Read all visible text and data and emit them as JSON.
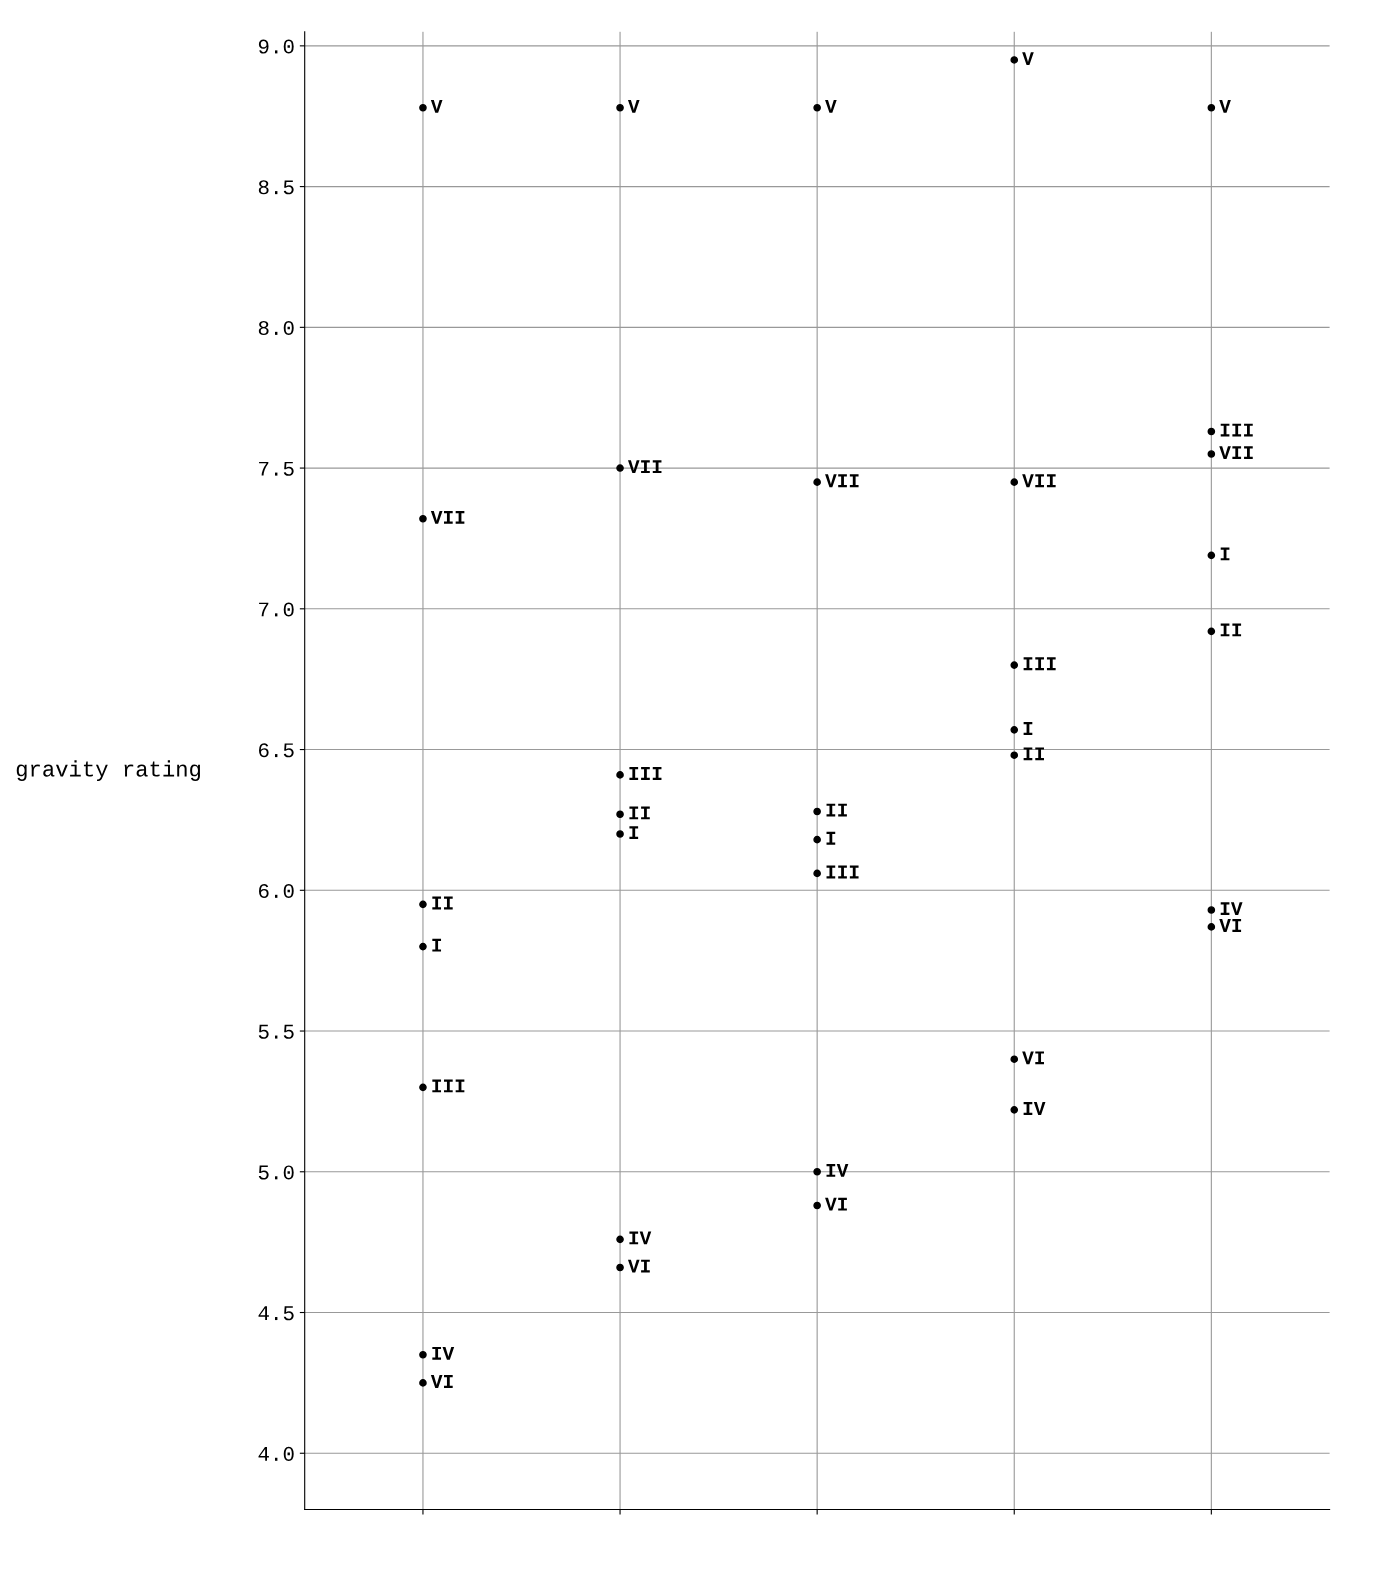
{
  "chart_data": {
    "type": "scatter",
    "ylabel": "gravity rating",
    "categories": [
      null,
      null,
      null,
      null,
      null
    ],
    "series": [
      {
        "name": "I",
        "color": "#000000",
        "values": [
          5.8,
          6.2,
          6.18,
          6.57,
          7.19
        ]
      },
      {
        "name": "II",
        "color": "#000000",
        "values": [
          5.95,
          6.27,
          6.28,
          6.48,
          6.92
        ]
      },
      {
        "name": "III",
        "color": "#000000",
        "values": [
          5.3,
          6.41,
          6.06,
          6.8,
          7.63
        ]
      },
      {
        "name": "IV",
        "color": "#000000",
        "values": [
          4.35,
          4.76,
          5.0,
          5.22,
          5.93
        ]
      },
      {
        "name": "V",
        "color": "#000000",
        "values": [
          8.78,
          8.78,
          8.78,
          8.95,
          8.78
        ]
      },
      {
        "name": "VI",
        "color": "#000000",
        "values": [
          4.25,
          4.66,
          4.88,
          5.4,
          5.87
        ]
      },
      {
        "name": "VII",
        "color": "#000000",
        "values": [
          7.32,
          7.5,
          7.45,
          7.45,
          7.55
        ]
      }
    ],
    "ylim": [
      3.8,
      9.05
    ],
    "yticks": [
      {
        "value": 4.0,
        "label": "4.0"
      },
      {
        "value": 4.5,
        "label": "4.5"
      },
      {
        "value": 5.0,
        "label": "5.0"
      },
      {
        "value": 5.5,
        "label": "5.5"
      },
      {
        "value": 6.0,
        "label": "6.0"
      },
      {
        "value": 6.5,
        "label": "6.5"
      },
      {
        "value": 7.0,
        "label": "7.0"
      },
      {
        "value": 7.5,
        "label": "7.5"
      },
      {
        "value": 8.0,
        "label": "8.0"
      },
      {
        "value": 8.5,
        "label": "8.5"
      },
      {
        "value": 9.0,
        "label": "9.0"
      }
    ],
    "grid": true,
    "marker": "circle",
    "tick_labels": "y"
  }
}
